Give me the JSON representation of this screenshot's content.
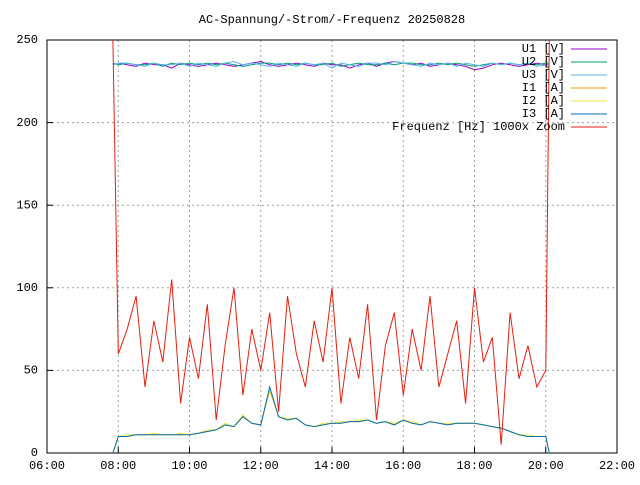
{
  "chart_data": {
    "type": "line",
    "title": "AC-Spannung/-Strom/-Frequenz 20250828",
    "x": [
      7.85,
      8,
      8.25,
      8.5,
      8.75,
      9,
      9.25,
      9.5,
      9.75,
      10,
      10.25,
      10.5,
      10.75,
      11,
      11.25,
      11.5,
      11.75,
      12,
      12.25,
      12.5,
      12.75,
      13,
      13.25,
      13.5,
      13.75,
      14,
      14.25,
      14.5,
      14.75,
      15,
      15.25,
      15.5,
      15.75,
      16,
      16.25,
      16.5,
      16.75,
      17,
      17.25,
      17.5,
      17.75,
      18,
      18.25,
      18.5,
      18.75,
      19,
      19.25,
      19.5,
      19.75,
      20,
      20.1
    ],
    "series": [
      {
        "name": "U1 [V]",
        "color": "#9400d3",
        "values": [
          235,
          236,
          235,
          234,
          236,
          235,
          235,
          233,
          236,
          235,
          234,
          235,
          236,
          235,
          234,
          235,
          236,
          237,
          235,
          234,
          235,
          236,
          235,
          234,
          236,
          235,
          235,
          233,
          235,
          236,
          234,
          236,
          237,
          236,
          235,
          236,
          234,
          235,
          236,
          235,
          234,
          232,
          233,
          235,
          236,
          235,
          234,
          235,
          236,
          235,
          235
        ]
      },
      {
        "name": "U2 [V]",
        "color": "#009e73",
        "values": [
          236,
          235,
          236,
          235,
          235,
          236,
          234,
          236,
          235,
          236,
          235,
          236,
          235,
          236,
          235,
          234,
          235,
          236,
          236,
          235,
          236,
          235,
          236,
          235,
          235,
          236,
          234,
          235,
          236,
          235,
          235,
          236,
          235,
          236,
          236,
          235,
          235,
          236,
          235,
          236,
          235,
          234,
          235,
          236,
          235,
          236,
          235,
          236,
          235,
          236,
          236
        ]
      },
      {
        "name": "U3 [V]",
        "color": "#56b4e9",
        "values": [
          235,
          236,
          236,
          235,
          234,
          236,
          235,
          235,
          236,
          234,
          236,
          235,
          234,
          236,
          237,
          235,
          236,
          235,
          234,
          236,
          235,
          234,
          236,
          235,
          236,
          233,
          236,
          235,
          234,
          236,
          236,
          235,
          237,
          236,
          235,
          234,
          236,
          235,
          236,
          234,
          236,
          235,
          234,
          236,
          235,
          236,
          235,
          236,
          234,
          235,
          235
        ]
      },
      {
        "name": "I1 [A]",
        "color": "#e69f00",
        "values": [
          0,
          10,
          10,
          11,
          11,
          11,
          11,
          11,
          11,
          11,
          12,
          13,
          14,
          17,
          16,
          22,
          18,
          17,
          38,
          22,
          20,
          21,
          17,
          16,
          17,
          18,
          18,
          19,
          19,
          20,
          18,
          19,
          17,
          20,
          18,
          17,
          19,
          18,
          17,
          18,
          18,
          18,
          17,
          16,
          15,
          13,
          11,
          10,
          10,
          10,
          0
        ]
      },
      {
        "name": "I2 [A]",
        "color": "#f0e442",
        "values": [
          0,
          10,
          11,
          11,
          11,
          12,
          11,
          11,
          12,
          11,
          12,
          14,
          14,
          18,
          16,
          23,
          18,
          17,
          39,
          22,
          21,
          21,
          17,
          16,
          18,
          18,
          19,
          19,
          20,
          20,
          18,
          19,
          18,
          20,
          19,
          17,
          19,
          18,
          18,
          18,
          18,
          18,
          17,
          16,
          15,
          13,
          11,
          11,
          10,
          10,
          0
        ]
      },
      {
        "name": "I3 [A]",
        "color": "#0072b2",
        "values": [
          0,
          10,
          10,
          11,
          11,
          11,
          11,
          11,
          11,
          11,
          12,
          13,
          14,
          17,
          16,
          22,
          18,
          17,
          40,
          22,
          20,
          21,
          17,
          16,
          17,
          18,
          18,
          19,
          19,
          20,
          18,
          19,
          17,
          20,
          18,
          17,
          19,
          18,
          17,
          18,
          18,
          18,
          17,
          16,
          15,
          13,
          11,
          10,
          10,
          10,
          0
        ]
      },
      {
        "name": "Frequenz [Hz] 1000x Zoom",
        "color": "#e51e10",
        "values": [
          250,
          60,
          75,
          95,
          40,
          80,
          55,
          105,
          30,
          70,
          45,
          90,
          20,
          65,
          100,
          35,
          75,
          50,
          85,
          25,
          95,
          60,
          40,
          80,
          55,
          100,
          30,
          70,
          45,
          90,
          20,
          65,
          85,
          35,
          75,
          50,
          95,
          40,
          60,
          80,
          30,
          100,
          55,
          70,
          5,
          85,
          45,
          65,
          40,
          50,
          250
        ]
      }
    ],
    "xlim": [
      6,
      22
    ],
    "xticks": [
      {
        "value": 6,
        "label": "06:00"
      },
      {
        "value": 8,
        "label": "08:00"
      },
      {
        "value": 10,
        "label": "10:00"
      },
      {
        "value": 12,
        "label": "12:00"
      },
      {
        "value": 14,
        "label": "14:00"
      },
      {
        "value": 16,
        "label": "16:00"
      },
      {
        "value": 18,
        "label": "18:00"
      },
      {
        "value": 20,
        "label": "20:00"
      },
      {
        "value": 22,
        "label": "22:00"
      }
    ],
    "ylim": [
      0,
      250
    ],
    "yticks": [
      0,
      50,
      100,
      150,
      200,
      250
    ],
    "grid": true,
    "legend": "top right"
  }
}
